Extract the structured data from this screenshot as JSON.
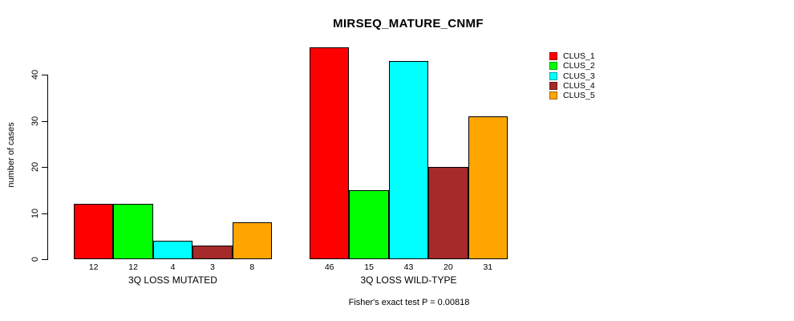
{
  "chart_data": {
    "type": "bar",
    "title": "MIRSEQ_MATURE_CNMF",
    "ylabel": "number of cases",
    "yticks": [
      0,
      10,
      20,
      30,
      40
    ],
    "ylim": [
      0,
      46
    ],
    "grid": false,
    "legend_position": "right",
    "categories": [
      "3Q LOSS MUTATED",
      "3Q LOSS WILD-TYPE"
    ],
    "series": [
      {
        "name": "CLUS_1",
        "color": "#FF0000",
        "values": [
          12,
          46
        ]
      },
      {
        "name": "CLUS_2",
        "color": "#00FF00",
        "values": [
          12,
          15
        ]
      },
      {
        "name": "CLUS_3",
        "color": "#00FFFF",
        "values": [
          4,
          43
        ]
      },
      {
        "name": "CLUS_4",
        "color": "#A52A2A",
        "values": [
          3,
          20
        ]
      },
      {
        "name": "CLUS_5",
        "color": "#FFA500",
        "values": [
          8,
          31
        ]
      }
    ],
    "bar_value_labels_shown": true,
    "annotation": "Fisher's exact test P = 0.00818"
  }
}
